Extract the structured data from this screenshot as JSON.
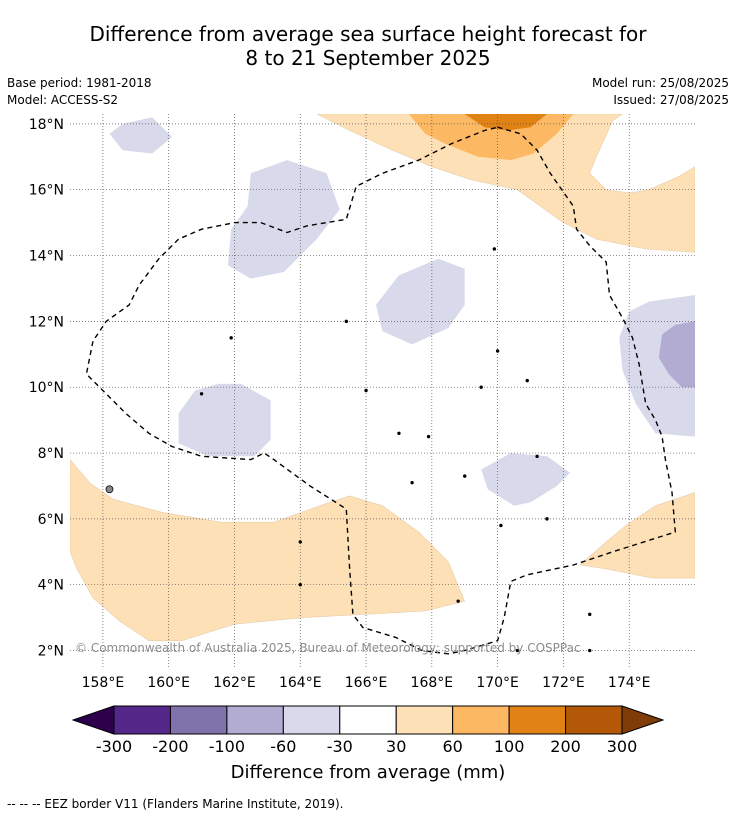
{
  "header": {
    "title_line1": "Difference from average sea surface height forecast for",
    "title_line2": "8 to 21 September 2025",
    "base_period": "Base period: 1981-2018",
    "model": "Model: ACCESS-S2",
    "model_run": "Model run: 25/08/2025",
    "issued": "Issued: 27/08/2025"
  },
  "copyright": "© Commonwealth of Australia 2025, Bureau of Meteorology; supported by COSPPac",
  "footnote": "-- -- -- EEZ border V11 (Flanders Marine Institute, 2019).",
  "chart_data": {
    "type": "heatmap",
    "title": "Difference from average sea surface height forecast for 8 to 21 September 2025",
    "xlim": [
      157,
      176
    ],
    "ylim": [
      1.5,
      18.3
    ],
    "x_ticks": [
      158,
      160,
      162,
      164,
      166,
      168,
      170,
      172,
      174
    ],
    "x_tick_labels": [
      "158°E",
      "160°E",
      "162°E",
      "164°E",
      "166°E",
      "168°E",
      "170°E",
      "172°E",
      "174°E"
    ],
    "y_ticks": [
      2,
      4,
      6,
      8,
      10,
      12,
      14,
      16,
      18
    ],
    "y_tick_labels": [
      "2°N",
      "4°N",
      "6°N",
      "8°N",
      "10°N",
      "12°N",
      "14°N",
      "16°N",
      "18°N"
    ],
    "grid": true,
    "colorbar": {
      "label": "Difference from average (mm)",
      "tick_labels": [
        "-300",
        "-200",
        "-100",
        "-60",
        "-30",
        "30",
        "60",
        "100",
        "200",
        "300"
      ],
      "under_color": "#2d004b",
      "over_color": "#7f3b08",
      "colors": [
        "#542788",
        "#8073ac",
        "#b2abd2",
        "#d8daeb",
        "#ffffff",
        "#fee0b6",
        "#fdb863",
        "#e08214",
        "#b35806"
      ]
    },
    "regions": [
      {
        "level": "-30 to -60",
        "color": "#d8daeb",
        "lonlat": [
          [
            158.2,
            17.7
          ],
          [
            158.6,
            18.0
          ],
          [
            159.5,
            18.2
          ],
          [
            160.1,
            17.6
          ],
          [
            159.5,
            17.1
          ],
          [
            158.6,
            17.2
          ]
        ]
      },
      {
        "level": "-30 to -60",
        "color": "#d8daeb",
        "lonlat": [
          [
            162.5,
            16.5
          ],
          [
            163.6,
            16.9
          ],
          [
            164.8,
            16.5
          ],
          [
            165.2,
            15.4
          ],
          [
            164.5,
            14.5
          ],
          [
            163.5,
            13.5
          ],
          [
            162.5,
            13.3
          ],
          [
            161.8,
            13.7
          ],
          [
            161.9,
            14.8
          ],
          [
            162.4,
            15.5
          ]
        ]
      },
      {
        "level": "-30 to -60",
        "color": "#d8daeb",
        "lonlat": [
          [
            166.3,
            12.5
          ],
          [
            167.0,
            13.4
          ],
          [
            168.2,
            13.9
          ],
          [
            169.0,
            13.6
          ],
          [
            169.0,
            12.5
          ],
          [
            168.5,
            11.8
          ],
          [
            167.4,
            11.3
          ],
          [
            166.5,
            11.7
          ]
        ]
      },
      {
        "level": "-30 to -60",
        "color": "#d8daeb",
        "lonlat": [
          [
            160.3,
            9.2
          ],
          [
            160.8,
            9.9
          ],
          [
            161.5,
            10.1
          ],
          [
            162.2,
            10.1
          ],
          [
            163.1,
            9.6
          ],
          [
            163.1,
            8.4
          ],
          [
            162.6,
            7.9
          ],
          [
            161.2,
            7.9
          ],
          [
            160.3,
            8.3
          ]
        ]
      },
      {
        "level": "-30 to -60",
        "color": "#d8daeb",
        "lonlat": [
          [
            169.5,
            7.5
          ],
          [
            170.4,
            8.0
          ],
          [
            171.5,
            7.9
          ],
          [
            172.2,
            7.4
          ],
          [
            171.8,
            7.0
          ],
          [
            171.0,
            6.5
          ],
          [
            170.5,
            6.4
          ],
          [
            169.7,
            6.9
          ]
        ]
      },
      {
        "level": "-30 to -60",
        "color": "#d8daeb",
        "lonlat": [
          [
            174.0,
            12.3
          ],
          [
            174.6,
            12.6
          ],
          [
            176.0,
            12.8
          ],
          [
            176.0,
            8.5
          ],
          [
            174.8,
            8.6
          ],
          [
            174.2,
            9.5
          ],
          [
            173.8,
            10.5
          ],
          [
            173.7,
            11.5
          ]
        ]
      },
      {
        "level": "-60 to -100",
        "color": "#b2abd2",
        "lonlat": [
          [
            175.0,
            11.6
          ],
          [
            175.4,
            11.9
          ],
          [
            176.0,
            12.0
          ],
          [
            176.0,
            10.0
          ],
          [
            175.6,
            10.0
          ],
          [
            175.2,
            10.4
          ],
          [
            174.9,
            10.9
          ]
        ]
      },
      {
        "level": "30 to 60",
        "color": "#fee0b6",
        "lonlat": [
          [
            157.0,
            7.8
          ],
          [
            157.6,
            7.1
          ],
          [
            158.3,
            6.6
          ],
          [
            159.8,
            6.2
          ],
          [
            161.6,
            5.9
          ],
          [
            163.2,
            5.9
          ],
          [
            164.6,
            6.4
          ],
          [
            165.5,
            6.7
          ],
          [
            166.5,
            6.4
          ],
          [
            167.6,
            5.6
          ],
          [
            168.5,
            4.7
          ],
          [
            169.0,
            3.5
          ],
          [
            167.8,
            3.2
          ],
          [
            166.0,
            3.1
          ],
          [
            164.1,
            3.0
          ],
          [
            162.0,
            2.8
          ],
          [
            160.4,
            2.3
          ],
          [
            159.4,
            2.3
          ],
          [
            158.5,
            2.9
          ],
          [
            157.7,
            3.6
          ],
          [
            157.2,
            4.5
          ],
          [
            157.0,
            5.0
          ]
        ]
      },
      {
        "level": "30 to 60",
        "color": "#fee0b6",
        "lonlat": [
          [
            172.5,
            4.6
          ],
          [
            173.3,
            5.3
          ],
          [
            173.9,
            5.8
          ],
          [
            174.8,
            6.4
          ],
          [
            176.0,
            6.8
          ],
          [
            176.0,
            4.2
          ],
          [
            174.7,
            4.2
          ],
          [
            173.2,
            4.5
          ]
        ]
      },
      {
        "level": "30 to 60",
        "color": "#fee0b6",
        "lonlat": [
          [
            164.5,
            18.3
          ],
          [
            173.8,
            18.3
          ],
          [
            173.5,
            18.1
          ],
          [
            173.0,
            17.0
          ],
          [
            172.8,
            16.5
          ],
          [
            173.3,
            16.0
          ],
          [
            174.0,
            15.9
          ],
          [
            174.6,
            16.0
          ],
          [
            175.5,
            16.4
          ],
          [
            176.0,
            16.7
          ],
          [
            176.0,
            14.1
          ],
          [
            174.5,
            14.2
          ],
          [
            173.0,
            14.5
          ],
          [
            172.0,
            15.0
          ],
          [
            171.3,
            15.5
          ],
          [
            170.6,
            16.0
          ],
          [
            169.2,
            16.3
          ],
          [
            168.0,
            16.7
          ],
          [
            166.8,
            17.2
          ],
          [
            165.5,
            17.8
          ]
        ]
      },
      {
        "level": "60 to 100",
        "color": "#fdb863",
        "lonlat": [
          [
            167.3,
            18.3
          ],
          [
            172.3,
            18.3
          ],
          [
            171.8,
            17.7
          ],
          [
            171.1,
            17.1
          ],
          [
            170.4,
            16.9
          ],
          [
            169.4,
            17.0
          ],
          [
            168.4,
            17.4
          ],
          [
            167.8,
            17.7
          ]
        ]
      },
      {
        "level": "100 to 200",
        "color": "#e08214",
        "lonlat": [
          [
            169.0,
            18.3
          ],
          [
            171.5,
            18.3
          ],
          [
            171.0,
            17.9
          ],
          [
            170.3,
            17.8
          ],
          [
            169.6,
            17.9
          ]
        ]
      }
    ],
    "eez_border": [
      [
        170.0,
        17.9
      ],
      [
        170.7,
        17.7
      ],
      [
        171.2,
        17.2
      ],
      [
        171.6,
        16.5
      ],
      [
        172.3,
        15.5
      ],
      [
        172.4,
        14.8
      ],
      [
        172.8,
        14.3
      ],
      [
        173.3,
        13.8
      ],
      [
        173.4,
        12.8
      ],
      [
        173.8,
        12.1
      ],
      [
        174.1,
        11.5
      ],
      [
        174.3,
        10.7
      ],
      [
        174.5,
        9.5
      ],
      [
        174.8,
        9.0
      ],
      [
        175.0,
        8.5
      ],
      [
        175.1,
        7.8
      ],
      [
        175.3,
        6.8
      ],
      [
        175.4,
        5.6
      ],
      [
        173.5,
        5.0
      ],
      [
        172.3,
        4.6
      ],
      [
        170.9,
        4.3
      ],
      [
        170.4,
        4.1
      ],
      [
        170.2,
        3.0
      ],
      [
        170.0,
        2.3
      ],
      [
        169.0,
        2.0
      ],
      [
        168.5,
        1.9
      ],
      [
        167.7,
        2.0
      ],
      [
        166.9,
        2.4
      ],
      [
        165.9,
        2.7
      ],
      [
        165.6,
        3.1
      ],
      [
        165.5,
        4.5
      ],
      [
        165.4,
        6.3
      ],
      [
        164.3,
        7.0
      ],
      [
        163.2,
        7.8
      ],
      [
        162.9,
        8.0
      ],
      [
        162.5,
        7.8
      ],
      [
        161.0,
        7.9
      ],
      [
        160.1,
        8.2
      ],
      [
        159.4,
        8.6
      ],
      [
        158.7,
        9.2
      ],
      [
        157.9,
        10.0
      ],
      [
        157.5,
        10.4
      ],
      [
        157.7,
        11.4
      ],
      [
        158.1,
        12.0
      ],
      [
        158.8,
        12.5
      ],
      [
        159.1,
        13.1
      ],
      [
        159.7,
        13.9
      ],
      [
        160.3,
        14.5
      ],
      [
        161.0,
        14.8
      ],
      [
        162.0,
        15.0
      ],
      [
        162.8,
        15.0
      ],
      [
        163.6,
        14.7
      ],
      [
        164.2,
        14.9
      ],
      [
        164.8,
        15.0
      ],
      [
        165.4,
        15.1
      ],
      [
        165.7,
        16.1
      ],
      [
        166.5,
        16.5
      ],
      [
        167.6,
        16.9
      ],
      [
        168.6,
        17.4
      ],
      [
        169.6,
        17.8
      ],
      [
        170.0,
        17.9
      ]
    ]
  }
}
